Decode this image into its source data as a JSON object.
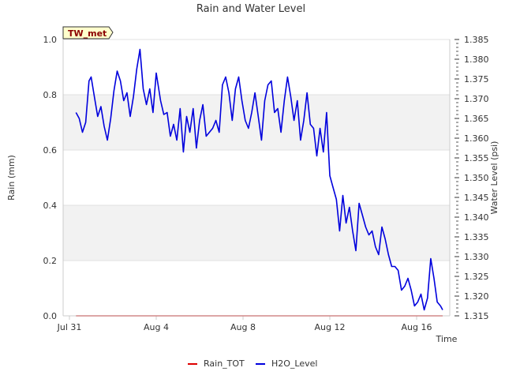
{
  "chart_data": {
    "type": "line",
    "title": "Rain and Water Level",
    "badge": "TW_met",
    "xlabel": "Time",
    "ylabel_left": "Rain (mm)",
    "ylabel_right": "Water Level (psi)",
    "x_start_day": 0,
    "x_end_day": 17.3,
    "x_ticks": [
      {
        "day": 0,
        "label": "Jul 31"
      },
      {
        "day": 4,
        "label": "Aug 4"
      },
      {
        "day": 8,
        "label": "Aug 8"
      },
      {
        "day": 12,
        "label": "Aug 12"
      },
      {
        "day": 16,
        "label": "Aug 16"
      }
    ],
    "y_left_range": [
      0.0,
      1.0
    ],
    "y_left_ticks": [
      "0.0",
      "0.2",
      "0.4",
      "0.6",
      "0.8",
      "1.0"
    ],
    "y_right_range": [
      1.315,
      1.385
    ],
    "y_right_ticks": [
      "1.315",
      "1.320",
      "1.325",
      "1.330",
      "1.335",
      "1.340",
      "1.345",
      "1.350",
      "1.355",
      "1.360",
      "1.365",
      "1.370",
      "1.375",
      "1.380",
      "1.385"
    ],
    "grid_bands": [
      [
        0.2,
        0.4
      ],
      [
        0.6,
        0.8
      ]
    ],
    "legend_position": "bottom",
    "series": [
      {
        "name": "Rain_TOT",
        "axis": "left",
        "color": "#dd0000",
        "x": [
          0.3,
          17.2
        ],
        "y": [
          0.0,
          0.0
        ]
      },
      {
        "name": "H2O_Level",
        "axis": "right",
        "color": "#0000dd",
        "x": [
          0.3,
          0.45,
          0.6,
          0.75,
          0.9,
          1.0,
          1.15,
          1.3,
          1.45,
          1.6,
          1.75,
          1.9,
          2.05,
          2.2,
          2.35,
          2.5,
          2.65,
          2.8,
          2.95,
          3.1,
          3.25,
          3.4,
          3.55,
          3.7,
          3.85,
          4.0,
          4.2,
          4.35,
          4.5,
          4.65,
          4.8,
          4.95,
          5.1,
          5.25,
          5.4,
          5.55,
          5.7,
          5.85,
          6.0,
          6.15,
          6.3,
          6.45,
          6.6,
          6.75,
          6.9,
          7.05,
          7.2,
          7.35,
          7.5,
          7.65,
          7.8,
          7.95,
          8.1,
          8.25,
          8.4,
          8.55,
          8.7,
          8.85,
          9.0,
          9.15,
          9.3,
          9.45,
          9.6,
          9.75,
          9.9,
          10.05,
          10.2,
          10.35,
          10.5,
          10.65,
          10.8,
          10.95,
          11.1,
          11.25,
          11.4,
          11.55,
          11.7,
          11.85,
          12.0,
          12.15,
          12.3,
          12.45,
          12.6,
          12.75,
          12.9,
          13.05,
          13.2,
          13.35,
          13.5,
          13.65,
          13.8,
          13.95,
          14.1,
          14.25,
          14.4,
          14.55,
          14.7,
          14.85,
          15.0,
          15.15,
          15.3,
          15.45,
          15.6,
          15.75,
          15.9,
          16.05,
          16.2,
          16.35,
          16.5,
          16.65,
          16.8,
          16.95,
          17.1,
          17.2
        ],
        "y": [
          1.3665,
          1.365,
          1.3615,
          1.364,
          1.3745,
          1.3755,
          1.3705,
          1.3655,
          1.368,
          1.363,
          1.3595,
          1.365,
          1.372,
          1.377,
          1.3745,
          1.3695,
          1.3715,
          1.3655,
          1.3705,
          1.3775,
          1.3825,
          1.3725,
          1.3685,
          1.3725,
          1.3665,
          1.3765,
          1.3695,
          1.366,
          1.3665,
          1.3605,
          1.3635,
          1.3595,
          1.3675,
          1.3565,
          1.3655,
          1.3615,
          1.3675,
          1.3575,
          1.3645,
          1.3685,
          1.3605,
          1.3615,
          1.3625,
          1.3645,
          1.3615,
          1.3735,
          1.3755,
          1.3715,
          1.3645,
          1.3725,
          1.3755,
          1.3695,
          1.3645,
          1.3625,
          1.3665,
          1.3715,
          1.3655,
          1.3595,
          1.3695,
          1.3735,
          1.3745,
          1.3665,
          1.3675,
          1.3615,
          1.3695,
          1.3755,
          1.3705,
          1.3645,
          1.3695,
          1.3595,
          1.3645,
          1.3715,
          1.3635,
          1.3625,
          1.3555,
          1.3625,
          1.3565,
          1.3665,
          1.3505,
          1.3475,
          1.3445,
          1.3365,
          1.3455,
          1.3385,
          1.3425,
          1.3365,
          1.3315,
          1.3435,
          1.3405,
          1.3375,
          1.3355,
          1.3365,
          1.3325,
          1.3305,
          1.3375,
          1.3345,
          1.3305,
          1.3275,
          1.3275,
          1.3265,
          1.3215,
          1.3225,
          1.3245,
          1.3215,
          1.3175,
          1.3185,
          1.3205,
          1.3165,
          1.3195,
          1.3295,
          1.3245,
          1.3185,
          1.3175,
          1.3165
        ]
      }
    ]
  }
}
